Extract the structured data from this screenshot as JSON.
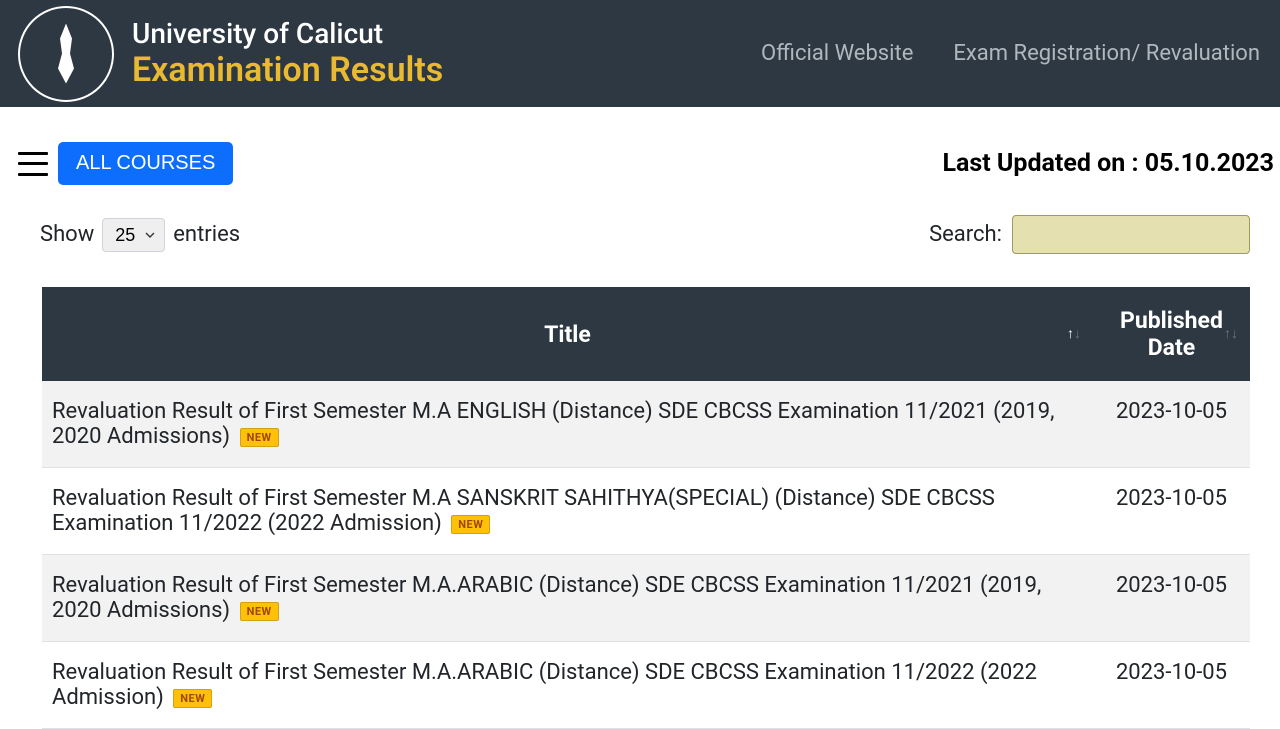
{
  "header": {
    "university_name": "University of Calicut",
    "subtitle": "Examination Results",
    "nav": {
      "official_website": "Official Website",
      "exam_registration": "Exam Registration/ Revaluation"
    }
  },
  "toolbar": {
    "all_courses_label": "ALL COURSES",
    "last_updated_label": "Last Updated on : 05.10.2023"
  },
  "table_controls": {
    "show_label": "Show",
    "entries_label": "entries",
    "entries_value": "25",
    "search_label": "Search:"
  },
  "table": {
    "columns": {
      "title": "Title",
      "published_date": "Published Date"
    },
    "rows": [
      {
        "title": "Revaluation Result of First Semester M.A ENGLISH (Distance) SDE CBCSS Examination 11/2021 (2019, 2020 Admissions)",
        "date": "2023-10-05",
        "new_badge": "NEW"
      },
      {
        "title": "Revaluation Result of First Semester M.A SANSKRIT SAHITHYA(SPECIAL) (Distance) SDE CBCSS Examination 11/2022 (2022 Admission)",
        "date": "2023-10-05",
        "new_badge": "NEW"
      },
      {
        "title": "Revaluation Result of First Semester M.A.ARABIC (Distance) SDE CBCSS Examination 11/2021 (2019, 2020 Admissions)",
        "date": "2023-10-05",
        "new_badge": "NEW"
      },
      {
        "title": "Revaluation Result of First Semester M.A.ARABIC (Distance) SDE CBCSS Examination 11/2022 (2022 Admission)",
        "date": "2023-10-05",
        "new_badge": "NEW"
      }
    ]
  },
  "colors": {
    "header_bg": "#2d3842",
    "accent_yellow": "#e9b931",
    "button_blue": "#0d6efd",
    "search_bg": "#e4e0af",
    "row_alt": "#f2f2f2"
  }
}
